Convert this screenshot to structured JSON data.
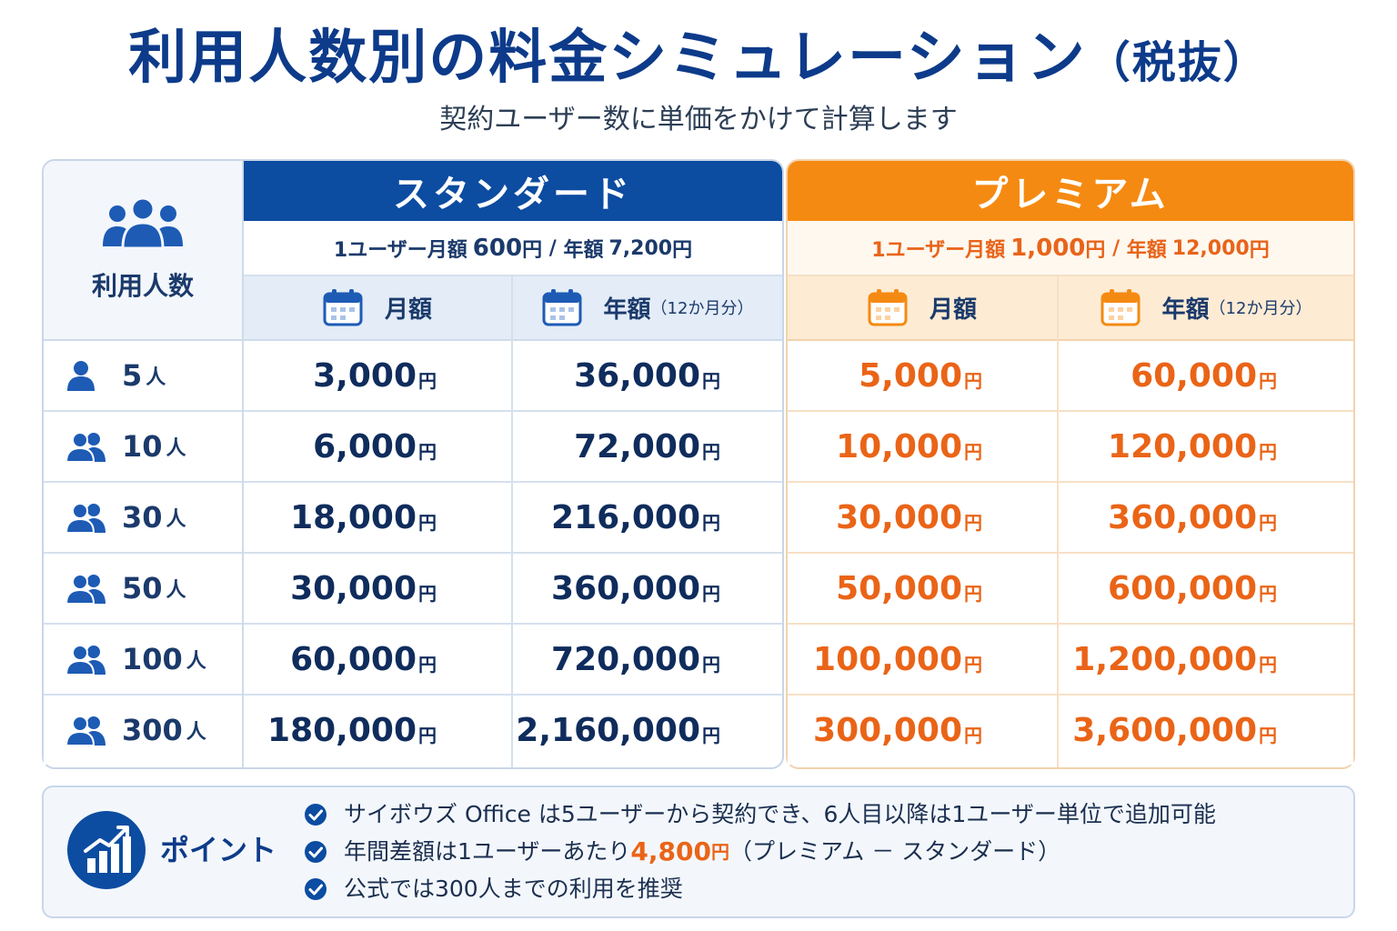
{
  "header": {
    "title": "利用人数別の料金シミュレーション",
    "title_suffix": "（税抜）",
    "subtitle": "契約ユーザー数に単価をかけて計算します"
  },
  "table": {
    "corner_label": "利用人数",
    "standard": {
      "name": "スタンダード",
      "price_prefix": "1ユーザー月額",
      "monthly_unit_price": "600",
      "yen": "円",
      "separator": " / ",
      "annual_prefix": "年額",
      "annual_unit_price": "7,200",
      "monthly_header": "月額",
      "annual_header": "年額",
      "annual_note": "（12か月分）"
    },
    "premium": {
      "name": "プレミアム",
      "price_prefix": "1ユーザー月額",
      "monthly_unit_price": "1,000",
      "yen": "円",
      "separator": " / ",
      "annual_prefix": "年額",
      "annual_unit_price": "12,000",
      "monthly_header": "月額",
      "annual_header": "年額",
      "annual_note": "（12か月分）"
    },
    "yen": "円",
    "person_unit": "人",
    "rows": [
      {
        "users": "5",
        "std_month": "3,000",
        "std_year": "36,000",
        "prem_month": "5,000",
        "prem_year": "60,000"
      },
      {
        "users": "10",
        "std_month": "6,000",
        "std_year": "72,000",
        "prem_month": "10,000",
        "prem_year": "120,000"
      },
      {
        "users": "30",
        "std_month": "18,000",
        "std_year": "216,000",
        "prem_month": "30,000",
        "prem_year": "360,000"
      },
      {
        "users": "50",
        "std_month": "30,000",
        "std_year": "360,000",
        "prem_month": "50,000",
        "prem_year": "600,000"
      },
      {
        "users": "100",
        "std_month": "60,000",
        "std_year": "720,000",
        "prem_month": "100,000",
        "prem_year": "1,200,000"
      },
      {
        "users": "300",
        "std_month": "180,000",
        "std_year": "2,160,000",
        "prem_month": "300,000",
        "prem_year": "3,600,000"
      }
    ]
  },
  "points": {
    "label": "ポイント",
    "item1": "サイボウズ Office は5ユーザーから契約でき、6人目以降は1ユーザー単位で追加可能",
    "item2_before": "年間差額は1ユーザーあたり",
    "item2_value": "4,800",
    "item2_yen": "円",
    "item2_after": "（プレミアム － スタンダード）",
    "item3": "公式では300人までの利用を推奨"
  },
  "colors": {
    "standard_accent": "#0c4ca1",
    "premium_accent": "#f58a12",
    "premium_text": "#ea6417",
    "title": "#0d3b8a"
  },
  "icons": {
    "corner": "people-group-icon",
    "row_single": "person-icon",
    "row_multi": "people-icon",
    "subheader": "calendar-icon",
    "point": "chart-growth-icon",
    "point_item": "check-circle-icon"
  }
}
